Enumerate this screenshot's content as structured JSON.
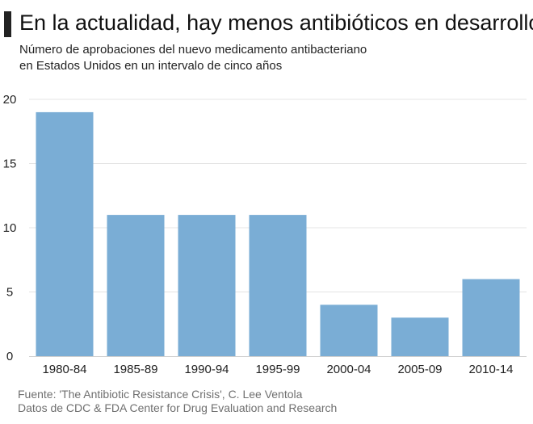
{
  "header": {
    "title": "En la actualidad, hay menos antibióticos en desarrollo",
    "subtitle_line1": "Número de aprobaciones del nuevo medicamento antibacteriano",
    "subtitle_line2": "en Estados Unidos en un intervalo de cinco años"
  },
  "footer": {
    "source_line1": "Fuente: 'The Antibiotic Resistance Crisis', C. Lee Ventola",
    "source_line2": "Datos de CDC & FDA Center for Drug Evaluation and Research"
  },
  "colors": {
    "bar": "#7aadd5",
    "grid": "#e4e4e4",
    "axis": "#cfcfcf",
    "text": "#222222",
    "title_marker": "#222222"
  },
  "chart_data": {
    "type": "bar",
    "title": "En la actualidad, hay menos antibióticos en desarrollo",
    "subtitle": "Número de aprobaciones del nuevo medicamento antibacteriano en Estados Unidos en un intervalo de cinco años",
    "xlabel": "",
    "ylabel": "",
    "categories": [
      "1980-84",
      "1985-89",
      "1990-94",
      "1995-99",
      "2000-04",
      "2005-09",
      "2010-14"
    ],
    "values": [
      19,
      11,
      11,
      11,
      4,
      3,
      6
    ],
    "ylim": [
      0,
      20
    ],
    "yticks": [
      0,
      5,
      10,
      15,
      20
    ],
    "grid": "horizontal",
    "legend": "none"
  }
}
